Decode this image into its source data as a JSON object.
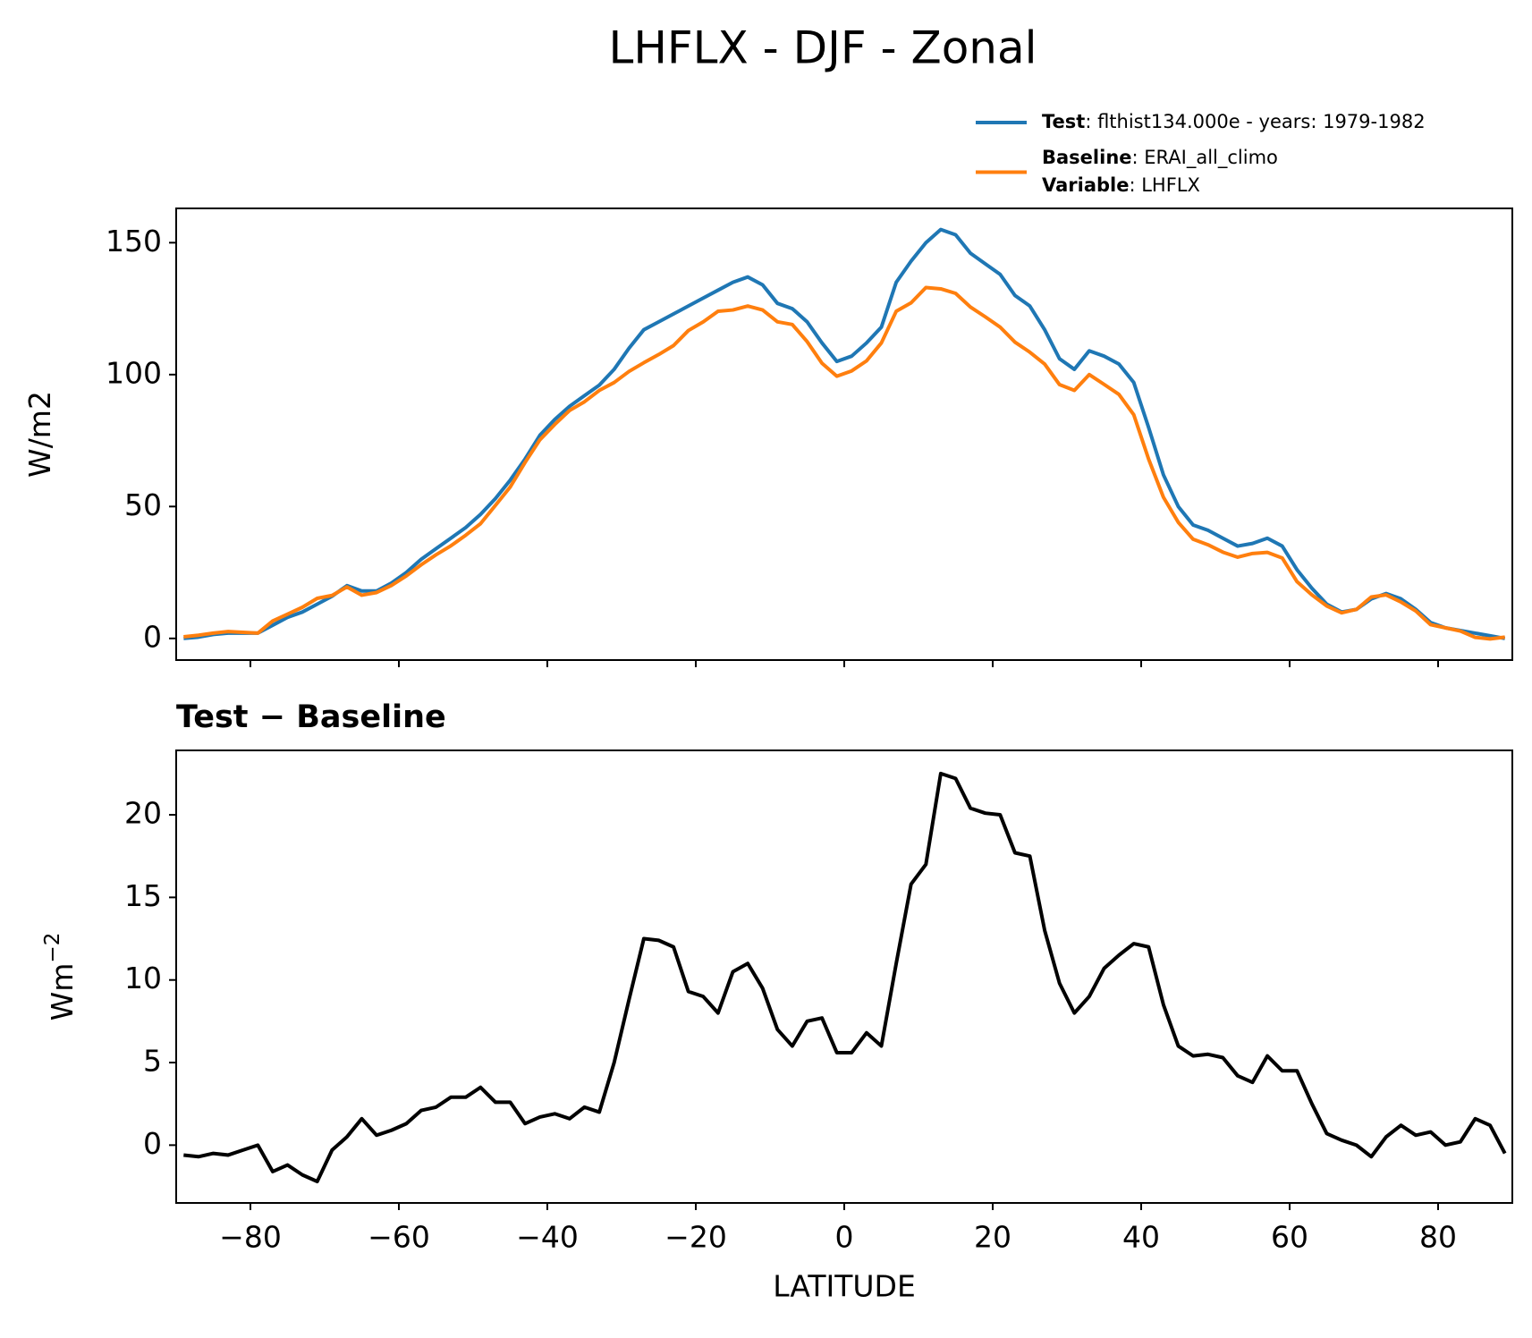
{
  "title": "LHFLX - DJF - Zonal",
  "chart_data": [
    {
      "type": "line",
      "y_label": "W/m2",
      "xlim": [
        -90,
        90
      ],
      "ylim": [
        -8.2,
        163
      ],
      "xticks": [
        -80,
        -60,
        -40,
        -20,
        0,
        20,
        40,
        60,
        80
      ],
      "yticks": [
        0,
        50,
        100,
        150
      ],
      "x": [
        -89,
        -87,
        -85,
        -83,
        -81,
        -79,
        -77,
        -75,
        -73,
        -71,
        -69,
        -67,
        -65,
        -63,
        -61,
        -59,
        -57,
        -55,
        -53,
        -51,
        -49,
        -47,
        -45,
        -43,
        -41,
        -39,
        -37,
        -35,
        -33,
        -31,
        -29,
        -27,
        -25,
        -23,
        -21,
        -19,
        -17,
        -15,
        -13,
        -11,
        -9,
        -7,
        -5,
        -3,
        -1,
        1,
        3,
        5,
        7,
        9,
        11,
        13,
        15,
        17,
        19,
        21,
        23,
        25,
        27,
        29,
        31,
        33,
        35,
        37,
        39,
        41,
        43,
        45,
        47,
        49,
        51,
        53,
        55,
        57,
        59,
        61,
        63,
        65,
        67,
        69,
        71,
        73,
        75,
        77,
        79,
        81,
        83,
        85,
        87,
        89
      ],
      "series": [
        {
          "name": "Test",
          "legend_text": ": flthist134.000e - years: 1979-1982",
          "color": "#1f77b4",
          "values": [
            0,
            0.5,
            1.5,
            2,
            2,
            2,
            5,
            8,
            10,
            13,
            16,
            20,
            18,
            18,
            21,
            25,
            30,
            34,
            38,
            42,
            47,
            53,
            60,
            68,
            77,
            83,
            88,
            92,
            96,
            102,
            110,
            117,
            120,
            123,
            126,
            129,
            132,
            135,
            137,
            134,
            127,
            125,
            120,
            112,
            105,
            107,
            112,
            118,
            135,
            143,
            150,
            155,
            153,
            146,
            142,
            138,
            130,
            126,
            117,
            106,
            102,
            109,
            107,
            104,
            97,
            80,
            62,
            50,
            43,
            41,
            38,
            35,
            36,
            38,
            35,
            26,
            19,
            13,
            10,
            11,
            15,
            17,
            15,
            11,
            6,
            4,
            3,
            2,
            1,
            0
          ]
        },
        {
          "name": "Baseline",
          "legend_text": ": ERAI_all_climo",
          "color": "#ff7f0e",
          "values": [
            0.6,
            1.2,
            2,
            2.6,
            2.3,
            2,
            6.6,
            9.2,
            11.8,
            15.2,
            16.3,
            19.5,
            16.4,
            17.4,
            20.1,
            23.7,
            27.9,
            31.7,
            35.1,
            39.1,
            43.5,
            50.4,
            57.4,
            66.7,
            75.3,
            81.1,
            86.4,
            89.7,
            94,
            97,
            101.2,
            104.5,
            107.6,
            111,
            116.7,
            120,
            124,
            124.5,
            126,
            124.5,
            120,
            119,
            112.5,
            104.3,
            99.4,
            101.4,
            105.2,
            112,
            124,
            127.2,
            133,
            132.5,
            130.8,
            125.6,
            121.9,
            118,
            112.3,
            108.5,
            104,
            96.2,
            94,
            100,
            96.3,
            92.5,
            84.8,
            68,
            53.5,
            44,
            37.6,
            35.5,
            32.7,
            30.8,
            32.2,
            32.6,
            30.5,
            21.5,
            16.5,
            12.3,
            9.7,
            11,
            15.7,
            16.5,
            13.8,
            10.4,
            5.2,
            4,
            2.8,
            0.4,
            -0.2,
            0.5
          ]
        }
      ],
      "legend_note": {
        "name": "Variable",
        "text": ": LHFLX"
      }
    },
    {
      "type": "line",
      "title": "Test − Baseline",
      "x_label": "LATITUDE",
      "y_label": "Wm",
      "y_label_superscript": "−2",
      "xlim": [
        -90,
        90
      ],
      "ylim": [
        -3.5,
        23.9
      ],
      "xticks": [
        {
          "value": -80,
          "label": "−80"
        },
        {
          "value": -60,
          "label": "−60"
        },
        {
          "value": -40,
          "label": "−40"
        },
        {
          "value": -20,
          "label": "−20"
        },
        0,
        20,
        40,
        60,
        80
      ],
      "yticks": [
        0,
        5,
        10,
        15,
        20
      ],
      "x": [
        -89,
        -87,
        -85,
        -83,
        -81,
        -79,
        -77,
        -75,
        -73,
        -71,
        -69,
        -67,
        -65,
        -63,
        -61,
        -59,
        -57,
        -55,
        -53,
        -51,
        -49,
        -47,
        -45,
        -43,
        -41,
        -39,
        -37,
        -35,
        -33,
        -31,
        -29,
        -27,
        -25,
        -23,
        -21,
        -19,
        -17,
        -15,
        -13,
        -11,
        -9,
        -7,
        -5,
        -3,
        -1,
        1,
        3,
        5,
        7,
        9,
        11,
        13,
        15,
        17,
        19,
        21,
        23,
        25,
        27,
        29,
        31,
        33,
        35,
        37,
        39,
        41,
        43,
        45,
        47,
        49,
        51,
        53,
        55,
        57,
        59,
        61,
        63,
        65,
        67,
        69,
        71,
        73,
        75,
        77,
        79,
        81,
        83,
        85,
        87,
        89
      ],
      "series": [
        {
          "color": "#000000",
          "values": [
            -0.6,
            -0.7,
            -0.5,
            -0.6,
            -0.3,
            0,
            -1.6,
            -1.2,
            -1.8,
            -2.2,
            -0.3,
            0.5,
            1.6,
            0.6,
            0.9,
            1.3,
            2.1,
            2.3,
            2.9,
            2.9,
            3.5,
            2.6,
            2.6,
            1.3,
            1.7,
            1.9,
            1.6,
            2.3,
            2.0,
            5,
            8.8,
            12.5,
            12.4,
            12,
            9.3,
            9.0,
            8,
            10.5,
            11,
            9.5,
            7,
            6,
            7.5,
            7.7,
            5.6,
            5.6,
            6.8,
            6,
            11,
            15.8,
            17,
            22.5,
            22.2,
            20.4,
            20.1,
            20,
            17.7,
            17.5,
            13,
            9.8,
            8,
            9,
            10.7,
            11.5,
            12.2,
            12,
            8.5,
            6,
            5.4,
            5.5,
            5.3,
            4.2,
            3.8,
            5.4,
            4.5,
            4.5,
            2.5,
            0.7,
            0.3,
            0,
            -0.7,
            0.5,
            1.2,
            0.6,
            0.8,
            0,
            0.2,
            1.6,
            1.2,
            -0.5
          ]
        }
      ]
    }
  ]
}
